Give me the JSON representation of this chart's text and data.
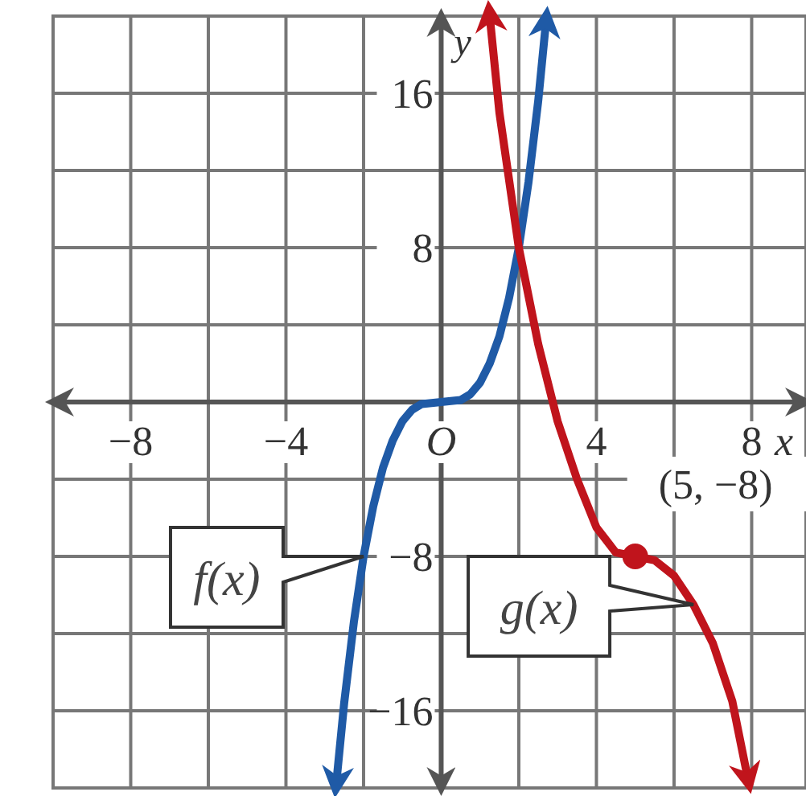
{
  "chart_data": {
    "type": "line",
    "xlabel": "x",
    "ylabel": "y",
    "xlim": [
      -10,
      9.4
    ],
    "ylim": [
      -20,
      20
    ],
    "xticks": [
      {
        "value": -10,
        "label": null
      },
      -8,
      {
        "value": -6,
        "label": null
      },
      -4,
      {
        "value": -2,
        "label": null
      },
      {
        "value": 0,
        "label": "O"
      },
      {
        "value": 2,
        "label": null
      },
      4,
      {
        "value": 6,
        "label": null
      },
      8
    ],
    "yticks": [
      {
        "value": -20,
        "label": null
      },
      -16,
      {
        "value": -12,
        "label": null
      },
      -8,
      {
        "value": -4,
        "label": null
      },
      {
        "value": 4,
        "label": null
      },
      8,
      {
        "value": 12,
        "label": null
      },
      16,
      {
        "value": 20,
        "label": null
      }
    ],
    "grid": true,
    "series": [
      {
        "name": "f(x)",
        "color": "#1f5aa6",
        "x": [
          -2.7,
          -2.5,
          -2.25,
          -2,
          -1.75,
          -1.5,
          -1.25,
          -1,
          -0.75,
          -0.5,
          0,
          0.5,
          0.75,
          1,
          1.25,
          1.5,
          1.75,
          2,
          2.25,
          2.5,
          2.7
        ],
        "values": [
          -19.7,
          -15.6,
          -11.4,
          -8,
          -5.4,
          -3.4,
          -2,
          -1,
          -0.4,
          -0.1,
          0,
          0.1,
          0.4,
          1,
          2,
          3.4,
          5.4,
          8,
          11.4,
          15.6,
          19.7
        ]
      },
      {
        "name": "g(x)",
        "color": "#c0141c",
        "x": [
          1.25,
          1.5,
          1.75,
          2,
          2.5,
          3,
          3.5,
          4,
          4.5,
          5,
          5.5,
          6,
          6.5,
          7,
          7.5,
          7.9
        ],
        "values": [
          20,
          15,
          11.5,
          8,
          3,
          -1,
          -4,
          -6.5,
          -7.8,
          -8,
          -8.2,
          -9,
          -10.5,
          -12.5,
          -15.5,
          -19.5
        ]
      },
      {
        "type": "scatter",
        "color": "#c0141c",
        "marker": "circle",
        "x": [
          5
        ],
        "values": [
          -8
        ]
      }
    ],
    "annotations": [
      {
        "text": "(5, −8)",
        "x": 5,
        "y": -8
      }
    ]
  }
}
